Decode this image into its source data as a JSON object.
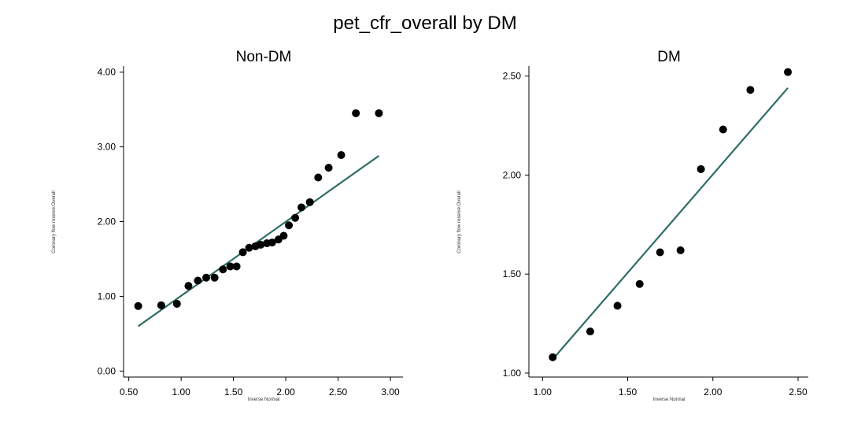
{
  "figure_title": "pet_cfr_overall by DM",
  "colors": {
    "points": "#000000",
    "line": "#2e6e66",
    "axis": "#000000",
    "background": "#ffffff"
  },
  "chart_data": [
    {
      "type": "scatter",
      "title": "Non-DM",
      "xlabel": "Inverse Normal",
      "ylabel": "Coronary flow reserve:Overall",
      "xlim": [
        0.45,
        3.12
      ],
      "ylim": [
        -0.08,
        4.08
      ],
      "xticks": [
        0.5,
        1.0,
        1.5,
        2.0,
        2.5,
        3.0
      ],
      "xtick_labels": [
        "0.50",
        "1.00",
        "1.50",
        "2.00",
        "2.50",
        "3.00"
      ],
      "yticks": [
        0,
        1,
        2,
        3,
        4
      ],
      "ytick_labels": [
        "0.00",
        "1.00",
        "2.00",
        "3.00",
        "4.00"
      ],
      "grid": false,
      "series": [
        {
          "x": [
            0.59,
            0.81,
            0.96,
            1.07,
            1.16,
            1.24,
            1.32,
            1.4,
            1.47,
            1.53,
            1.59,
            1.65,
            1.71,
            1.76,
            1.82,
            1.87,
            1.93,
            1.98,
            2.03,
            2.09,
            2.15,
            2.23,
            2.31,
            2.41,
            2.53,
            2.67,
            2.89
          ],
          "y": [
            0.87,
            0.88,
            0.9,
            1.14,
            1.21,
            1.25,
            1.25,
            1.36,
            1.4,
            1.4,
            1.59,
            1.65,
            1.67,
            1.69,
            1.71,
            1.72,
            1.76,
            1.81,
            1.95,
            2.05,
            2.19,
            2.26,
            2.59,
            2.72,
            2.89,
            3.45,
            3.45
          ]
        }
      ],
      "fit_line": {
        "x": [
          0.59,
          2.89
        ],
        "y": [
          0.6,
          2.88
        ]
      }
    },
    {
      "type": "scatter",
      "title": "DM",
      "xlabel": "Inverse Normal",
      "ylabel": "Coronary flow reserve:Overall",
      "xlim": [
        0.92,
        2.56
      ],
      "ylim": [
        0.98,
        2.55
      ],
      "xticks": [
        1.0,
        1.5,
        2.0,
        2.5
      ],
      "xtick_labels": [
        "1.00",
        "1.50",
        "2.00",
        "2.50"
      ],
      "yticks": [
        1.0,
        1.5,
        2.0,
        2.5
      ],
      "ytick_labels": [
        "1.00",
        "1.50",
        "2.00",
        "2.50"
      ],
      "grid": false,
      "series": [
        {
          "x": [
            1.06,
            1.28,
            1.44,
            1.57,
            1.69,
            1.81,
            1.93,
            2.06,
            2.22,
            2.44
          ],
          "y": [
            1.08,
            1.21,
            1.34,
            1.45,
            1.61,
            1.62,
            2.03,
            2.23,
            2.43,
            2.52
          ]
        }
      ],
      "fit_line": {
        "x": [
          1.06,
          2.44
        ],
        "y": [
          1.07,
          2.44
        ]
      }
    }
  ]
}
